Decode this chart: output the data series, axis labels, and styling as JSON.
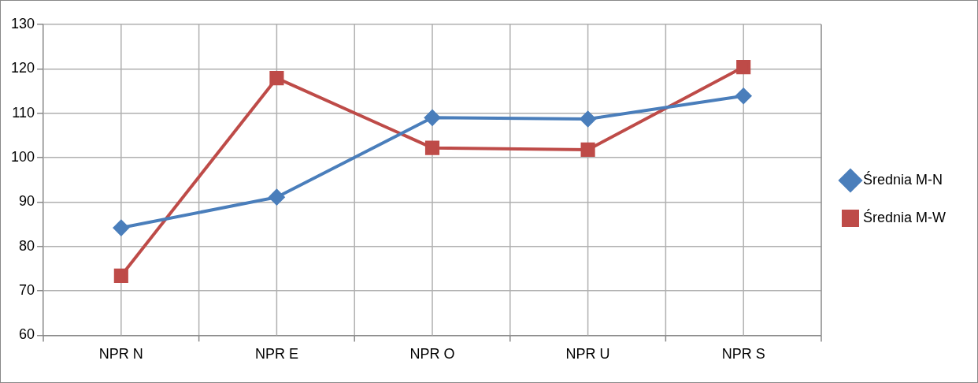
{
  "chart_data": {
    "type": "line",
    "categories": [
      "NPR N",
      "NPR E",
      "NPR O",
      "NPR U",
      "NPR S"
    ],
    "series": [
      {
        "name": "Średnia M-N",
        "color": "#4a7ebb",
        "marker": "diamond",
        "values": [
          84.2,
          91.1,
          109,
          108.7,
          113.9
        ]
      },
      {
        "name": "Średnia M-W",
        "color": "#be4b48",
        "marker": "square",
        "values": [
          73.4,
          117.9,
          102.2,
          101.8,
          120.4
        ]
      }
    ],
    "ylim": [
      60,
      130
    ],
    "yticks": [
      60,
      70,
      80,
      90,
      100,
      110,
      120,
      130
    ],
    "grid": true,
    "legend": "right"
  }
}
